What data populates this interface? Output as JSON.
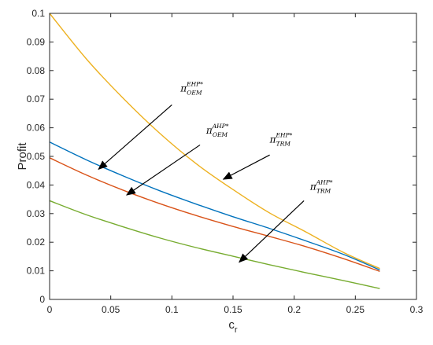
{
  "chart_data": {
    "type": "line",
    "title": "",
    "xlabel_base": "c",
    "xlabel_sub": "r",
    "ylabel": "Profit",
    "xlim": [
      0,
      0.3
    ],
    "ylim": [
      0,
      0.1
    ],
    "xticks": [
      0,
      0.05,
      0.1,
      0.15,
      0.2,
      0.25,
      0.3
    ],
    "xtick_labels": [
      "0",
      "0.05",
      "0.1",
      "0.15",
      "0.2",
      "0.25",
      "0.3"
    ],
    "yticks": [
      0,
      0.01,
      0.02,
      0.03,
      0.04,
      0.05,
      0.06,
      0.07,
      0.08,
      0.09,
      0.1
    ],
    "ytick_labels": [
      "0",
      "0.01",
      "0.02",
      "0.03",
      "0.04",
      "0.05",
      "0.06",
      "0.07",
      "0.08",
      "0.09",
      "0.1"
    ],
    "grid": false,
    "legend": "none",
    "series": [
      {
        "key": "trm-ehp",
        "color": "#EDB120",
        "x": [
          0,
          0.03,
          0.06,
          0.09,
          0.12,
          0.15,
          0.18,
          0.21,
          0.24,
          0.27
        ],
        "y": [
          0.1,
          0.0841,
          0.0704,
          0.0581,
          0.0474,
          0.0384,
          0.0302,
          0.0235,
          0.0165,
          0.0108
        ]
      },
      {
        "key": "oem-ehp",
        "color": "#0072BD",
        "x": [
          0,
          0.03,
          0.06,
          0.09,
          0.12,
          0.15,
          0.18,
          0.21,
          0.24,
          0.27
        ],
        "y": [
          0.055,
          0.0488,
          0.0432,
          0.038,
          0.0333,
          0.0289,
          0.0248,
          0.0204,
          0.0158,
          0.0103
        ]
      },
      {
        "key": "oem-ahp",
        "color": "#D95319",
        "x": [
          0,
          0.03,
          0.06,
          0.09,
          0.12,
          0.15,
          0.18,
          0.21,
          0.24,
          0.27
        ],
        "y": [
          0.0495,
          0.0435,
          0.0382,
          0.0335,
          0.0293,
          0.0255,
          0.022,
          0.0184,
          0.0143,
          0.0098
        ]
      },
      {
        "key": "trm-ahp",
        "color": "#77AC30",
        "x": [
          0,
          0.03,
          0.06,
          0.09,
          0.12,
          0.15,
          0.18,
          0.21,
          0.24,
          0.27
        ],
        "y": [
          0.0345,
          0.0296,
          0.0254,
          0.0215,
          0.0181,
          0.0151,
          0.0121,
          0.0093,
          0.0066,
          0.0038
        ]
      }
    ],
    "annotations": [
      {
        "key": "oem-ehp",
        "base": "π",
        "sub": "OEM",
        "sup": "EHP*",
        "label_at": [
          0.107,
          0.0727
        ],
        "arrow_from": [
          0.1,
          0.068
        ],
        "arrow_to": [
          0.04,
          0.0455
        ]
      },
      {
        "key": "oem-ahp",
        "base": "π",
        "sub": "OEM",
        "sup": "AHP*",
        "label_at": [
          0.128,
          0.058
        ],
        "arrow_from": [
          0.123,
          0.054
        ],
        "arrow_to": [
          0.063,
          0.0365
        ]
      },
      {
        "key": "trm-ehp",
        "base": "π",
        "sub": "TRM",
        "sup": "EHP*",
        "label_at": [
          0.18,
          0.0548
        ],
        "arrow_from": [
          0.18,
          0.0505
        ],
        "arrow_to": [
          0.142,
          0.042
        ]
      },
      {
        "key": "trm-ahp",
        "base": "π",
        "sub": "TRM",
        "sup": "AHP*",
        "label_at": [
          0.213,
          0.0383
        ],
        "arrow_from": [
          0.208,
          0.0345
        ],
        "arrow_to": [
          0.155,
          0.013
        ]
      }
    ]
  }
}
